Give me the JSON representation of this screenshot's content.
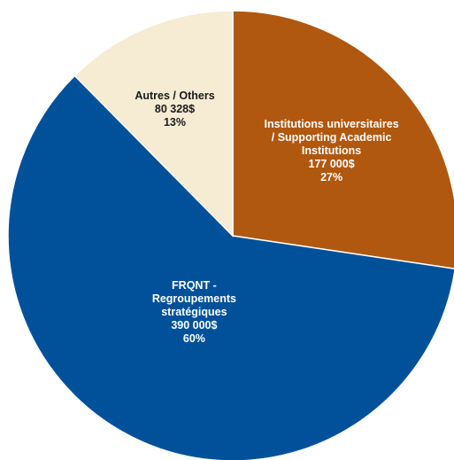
{
  "chart_data": {
    "type": "pie",
    "title": "",
    "slices": [
      {
        "name": "Institutions universitaires / Supporting Academic Institutions",
        "value": 177000,
        "percent": 27,
        "label_lines": [
          "Institutions universitaires",
          "/ Supporting Academic",
          "Institutions",
          "177 000$",
          "27%"
        ],
        "color": "#B0580F",
        "label_color": "#ffffff"
      },
      {
        "name": "FRQNT - Regroupements stratégiques",
        "value": 390000,
        "percent": 60,
        "label_lines": [
          "FRQNT -",
          "Regroupements",
          "stratégiques",
          "390 000$",
          "60%"
        ],
        "color": "#00519A",
        "label_color": "#ffffff"
      },
      {
        "name": "Autres / Others",
        "value": 80328,
        "percent": 13,
        "label_lines": [
          "Autres / Others",
          "80 328$",
          "13%"
        ],
        "color": "#F6EBD3",
        "label_color": "#1a1a1a"
      }
    ],
    "start_angle": "12 o'clock",
    "direction": "clockwise",
    "legend": "none"
  }
}
